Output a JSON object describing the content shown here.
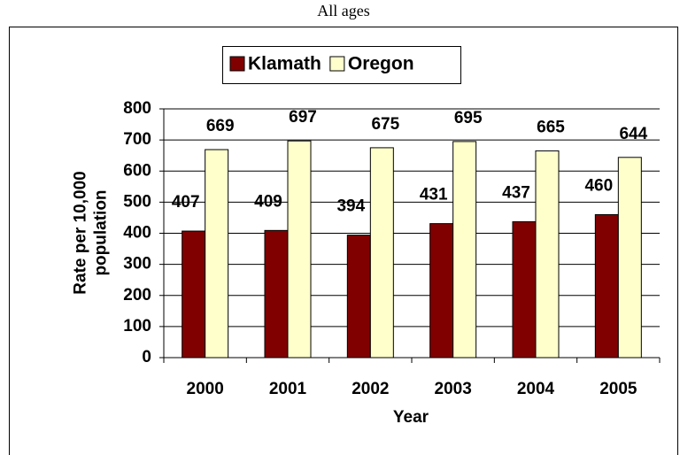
{
  "chart_data": {
    "type": "bar",
    "title": "All ages",
    "categories": [
      "2000",
      "2001",
      "2002",
      "2003",
      "2004",
      "2005"
    ],
    "series": [
      {
        "name": "Klamath",
        "color": "#800000",
        "values": [
          407,
          409,
          394,
          431,
          437,
          460
        ]
      },
      {
        "name": "Oregon",
        "color": "#ffffcc",
        "values": [
          669,
          697,
          675,
          695,
          665,
          644
        ]
      }
    ],
    "x_label": "Year",
    "y_label": "Rate per 10,000 population",
    "ylim": [
      0,
      800
    ],
    "yticks": [
      0,
      100,
      200,
      300,
      400,
      500,
      600,
      700,
      800
    ],
    "grid": true
  }
}
